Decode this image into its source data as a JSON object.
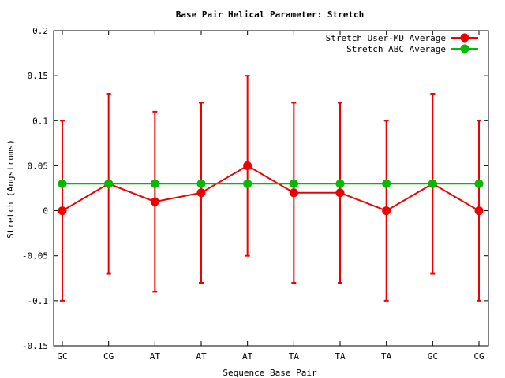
{
  "chart_data": {
    "type": "line",
    "title": "Base Pair Helical Parameter: Stretch",
    "xlabel": "Sequence Base Pair",
    "ylabel": "Stretch (Angstroms)",
    "ylim": [
      -0.15,
      0.2
    ],
    "yticks": [
      -0.15,
      -0.1,
      -0.05,
      0,
      0.05,
      0.1,
      0.15,
      0.2
    ],
    "ytick_labels": [
      "-0.15",
      "-0.1",
      "-0.05",
      "0",
      "0.05",
      "0.1",
      "0.15",
      "0.2"
    ],
    "categories": [
      "GC",
      "CG",
      "AT",
      "AT",
      "AT",
      "TA",
      "TA",
      "TA",
      "GC",
      "CG"
    ],
    "grid": false,
    "legend_position": "top-right",
    "series": [
      {
        "name": "Stretch User-MD Average",
        "color": "#ee0000",
        "values": [
          0.0,
          0.03,
          0.01,
          0.02,
          0.05,
          0.02,
          0.02,
          0.0,
          0.03,
          0.0
        ],
        "error_low": [
          -0.1,
          -0.07,
          -0.09,
          -0.08,
          -0.05,
          -0.08,
          -0.08,
          -0.1,
          -0.07,
          -0.1
        ],
        "error_high": [
          0.1,
          0.13,
          0.11,
          0.12,
          0.15,
          0.12,
          0.12,
          0.1,
          0.13,
          0.1
        ]
      },
      {
        "name": "Stretch ABC Average",
        "color": "#00bb00",
        "values": [
          0.03,
          0.03,
          0.03,
          0.03,
          0.03,
          0.03,
          0.03,
          0.03,
          0.03,
          0.03
        ]
      }
    ]
  }
}
